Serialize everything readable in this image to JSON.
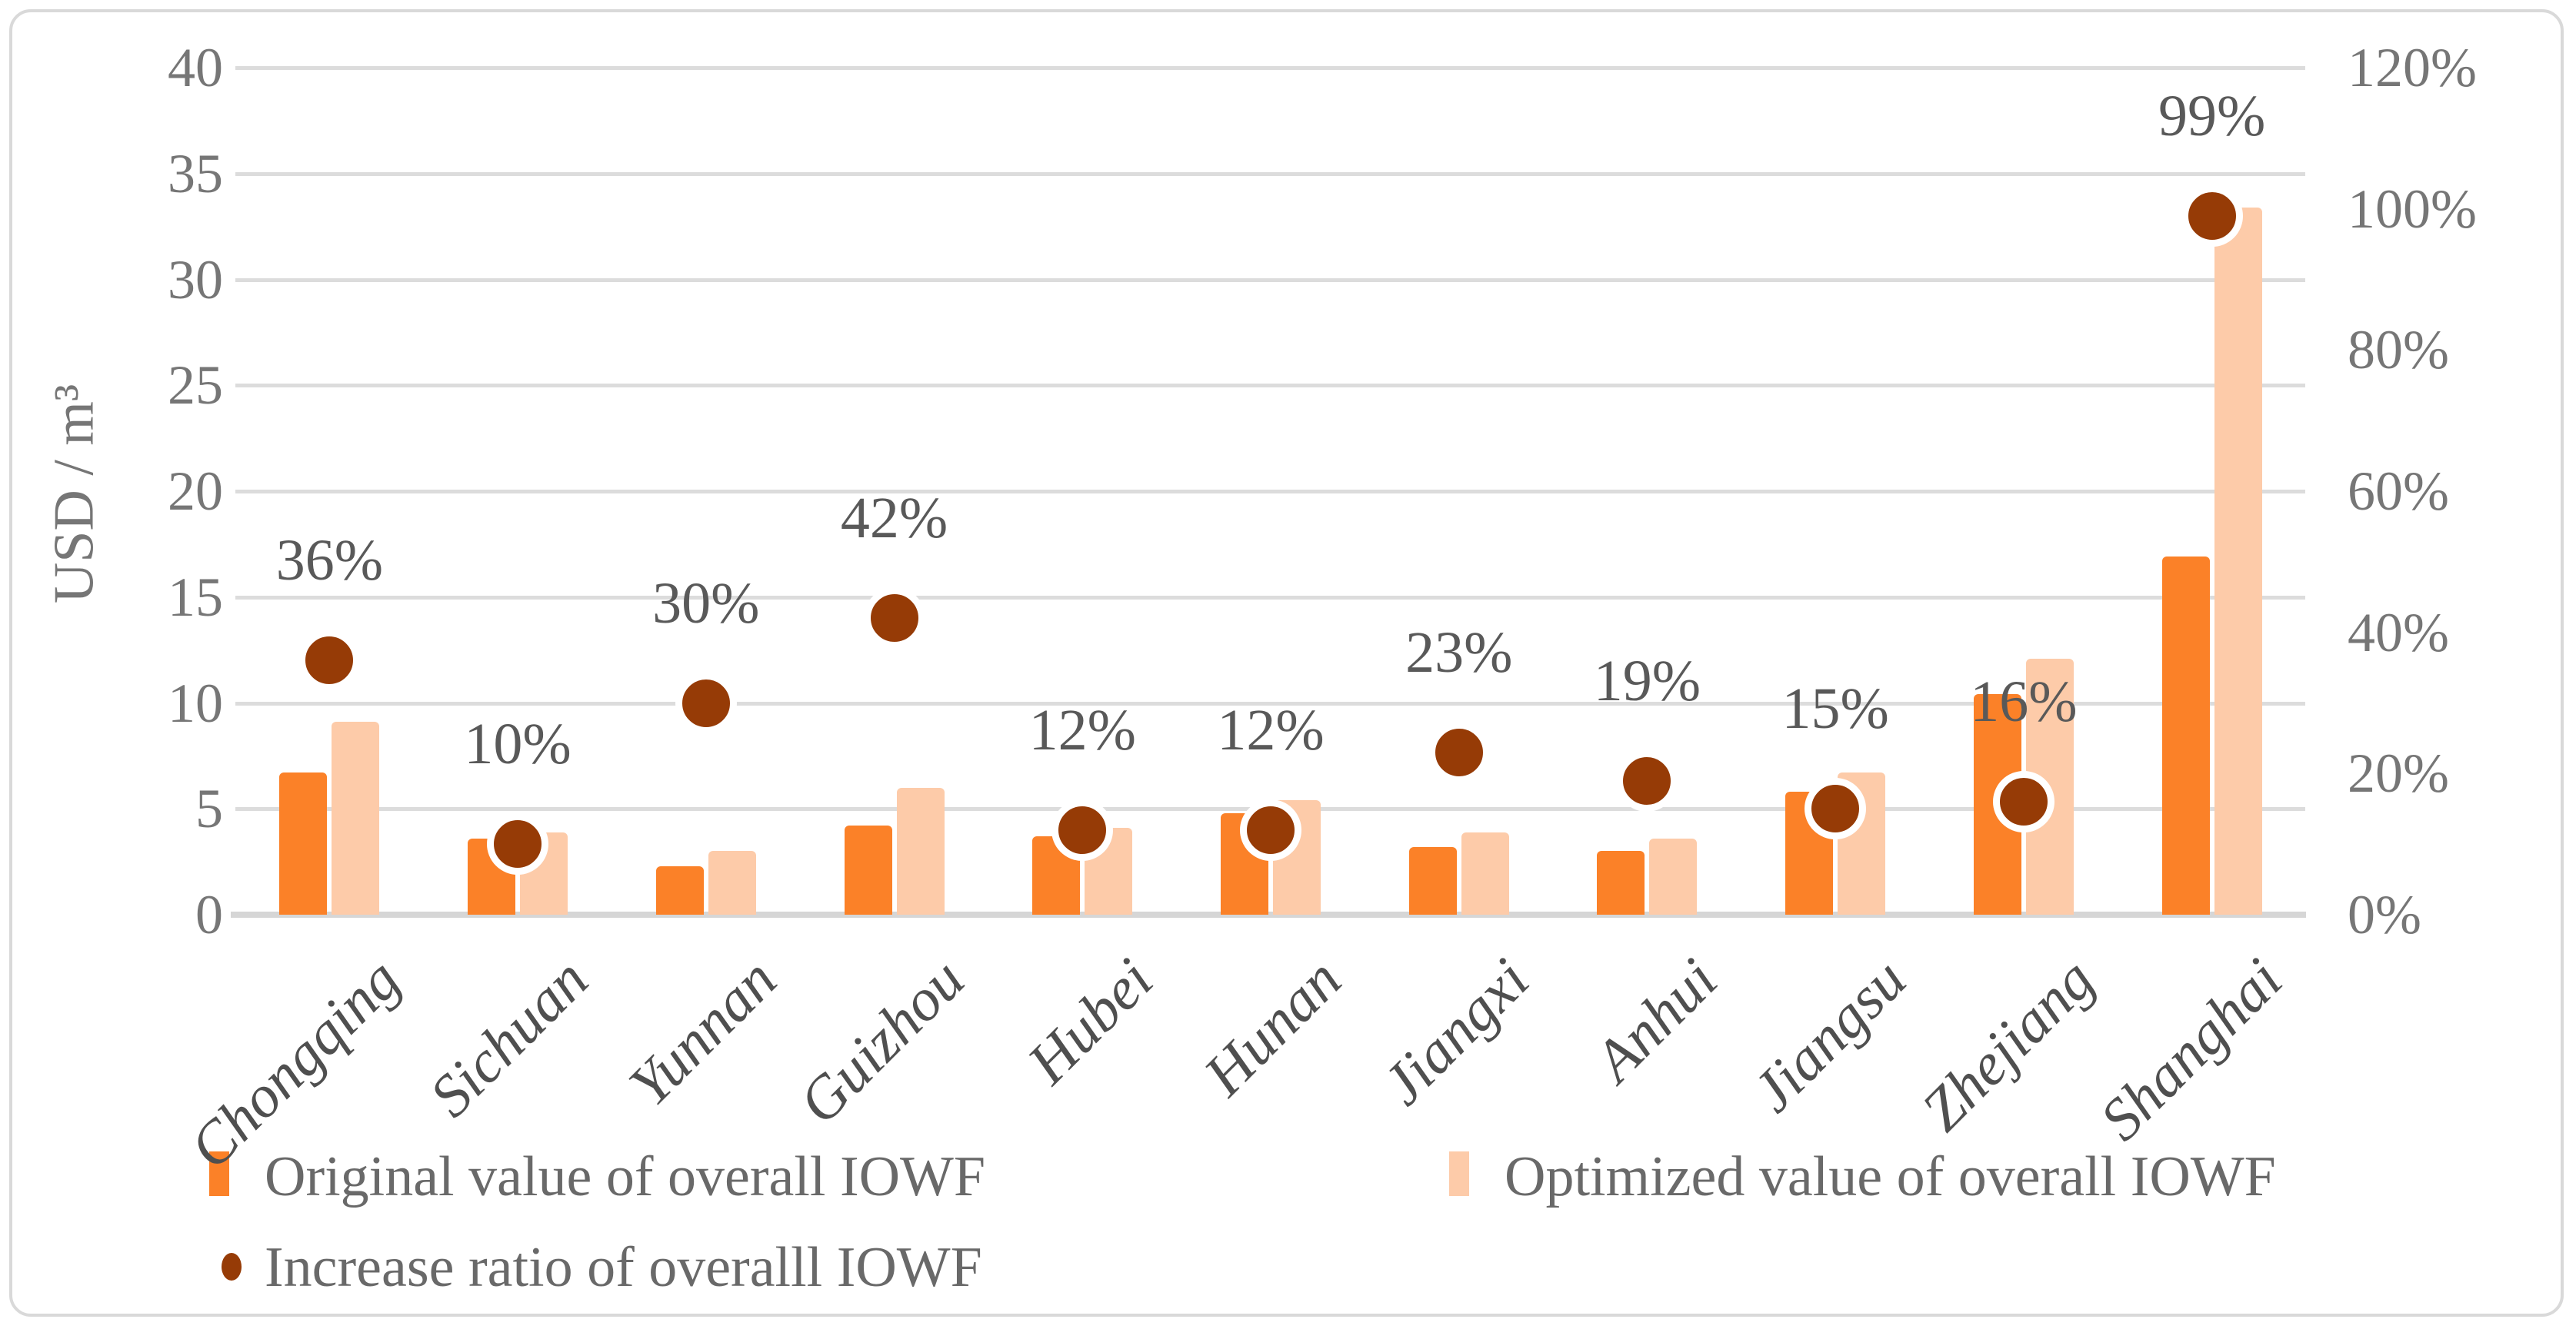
{
  "figure_title": "",
  "y_axis_title": "USD / m³",
  "legend": {
    "original_label": "Original value of overall  IOWF",
    "optimized_label": "Optimized value of overall  IOWF",
    "ratio_label": "Increase ratio of  overalll  IOWF"
  },
  "colors": {
    "bar_original": "#fb8128",
    "bar_optimized": "#fdcba9",
    "dot": "#963b06",
    "dot_ring": "#ffffff",
    "gridline": "#dcdcdc",
    "axis_line": "#d6d6d6",
    "tick_text": "#767676",
    "category_text": "#4f4f4f",
    "point_label_text": "#595959",
    "legend_text": "#696969",
    "border": "#d9d9d9",
    "background": "#ffffff"
  },
  "chart_data": {
    "type": "bar",
    "subtype": "grouped bars + scatter points on secondary axis (combo chart)",
    "categories": [
      "Chongqing",
      "Sichuan",
      "Yunnan",
      "Guizhou",
      "Hubei",
      "Hunan",
      "Jiangxi",
      "Anhui",
      "Jiangsu",
      "Zhejiang",
      "Shanghai"
    ],
    "series": [
      {
        "name": "Original value of overall  IOWF",
        "type": "bar",
        "axis": "left",
        "values": [
          6.7,
          3.6,
          2.3,
          4.2,
          3.7,
          4.8,
          3.2,
          3.0,
          5.8,
          10.4,
          16.9
        ]
      },
      {
        "name": "Optimized value of overall  IOWF",
        "type": "bar",
        "axis": "left",
        "values": [
          9.1,
          3.9,
          3.0,
          6.0,
          4.1,
          5.4,
          3.9,
          3.6,
          6.7,
          12.1,
          33.4
        ]
      },
      {
        "name": "Increase ratio of  overalll  IOWF",
        "type": "scatter",
        "axis": "right",
        "values": [
          36,
          10,
          30,
          42,
          12,
          12,
          23,
          19,
          15,
          16,
          99
        ],
        "labels": [
          "36%",
          "10%",
          "30%",
          "42%",
          "12%",
          "12%",
          "23%",
          "19%",
          "15%",
          "16%",
          "99%"
        ]
      }
    ],
    "left_axis": {
      "title": "USD / m³",
      "min": 0,
      "max": 40,
      "step": 5,
      "ticks": [
        "40",
        "35",
        "30",
        "25",
        "20",
        "15",
        "10",
        "5",
        "0"
      ]
    },
    "right_axis": {
      "min": 0,
      "max": 120,
      "step": 20,
      "ticks": [
        "120%",
        "100%",
        "80%",
        "60%",
        "40%",
        "20%",
        "0%"
      ]
    },
    "grid": true,
    "legend_position": "bottom"
  }
}
